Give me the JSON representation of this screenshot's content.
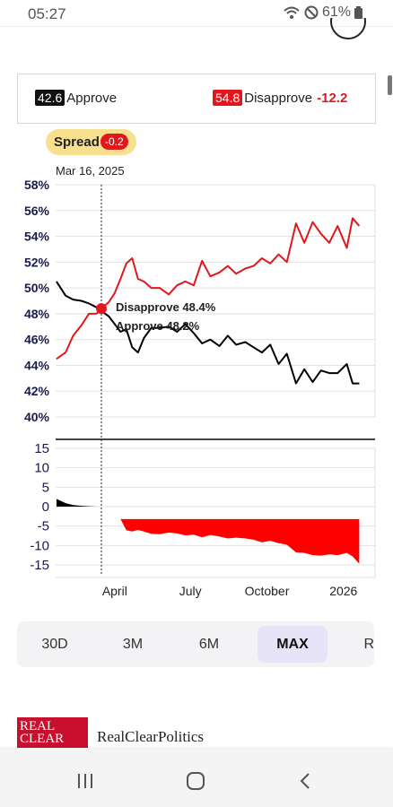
{
  "status": {
    "time": "05:27",
    "battery": "61%"
  },
  "legend": {
    "approve_value": "42.6",
    "approve_label": "Approve",
    "disapprove_value": "54.8",
    "disapprove_label": "Disapprove",
    "net": "-12.2"
  },
  "spread": {
    "label": "Spread",
    "value": "-0.2"
  },
  "tooltip": {
    "date": "Mar 16, 2025",
    "disapprove": "Disapprove 48.4%",
    "approve": "Approve 48.2%"
  },
  "range": {
    "options": [
      "30D",
      "3M",
      "6M",
      "MAX",
      "R"
    ],
    "selected": "MAX"
  },
  "footer": {
    "logo_text": "REAL CLEAR",
    "brand": "RealClearPolitics"
  },
  "colors": {
    "approve": "#000000",
    "disapprove": "#e1171e",
    "spread_pill": "#f7e08f",
    "active_range": "#e6e4f6"
  },
  "icons": {
    "wifi": "wifi-icon",
    "dnd": "do-not-disturb-icon",
    "battery": "battery-icon",
    "recents": "recents-icon",
    "home": "home-icon",
    "back": "back-icon"
  },
  "chart_data": [
    {
      "type": "line",
      "ylim": [
        40,
        58
      ],
      "yticks": [
        "58%",
        "56%",
        "54%",
        "52%",
        "50%",
        "48%",
        "46%",
        "44%",
        "42%",
        "40%"
      ],
      "xticks": [
        "April",
        "July",
        "October",
        "2026"
      ],
      "grid": true,
      "x": [
        "2025-01-21",
        "2025-02-01",
        "2025-02-10",
        "2025-02-20",
        "2025-03-01",
        "2025-03-10",
        "2025-03-16",
        "2025-03-25",
        "2025-04-01",
        "2025-04-08",
        "2025-04-15",
        "2025-04-22",
        "2025-04-29",
        "2025-05-06",
        "2025-05-15",
        "2025-05-25",
        "2025-06-05",
        "2025-06-15",
        "2025-06-25",
        "2025-07-05",
        "2025-07-15",
        "2025-07-25",
        "2025-08-05",
        "2025-08-15",
        "2025-08-25",
        "2025-09-05",
        "2025-09-15",
        "2025-09-25",
        "2025-10-05",
        "2025-10-15",
        "2025-10-25",
        "2025-11-05",
        "2025-11-15",
        "2025-11-25",
        "2025-12-05",
        "2025-12-15",
        "2025-12-25",
        "2026-01-05",
        "2026-01-12",
        "2026-01-20"
      ],
      "series": [
        {
          "name": "Approve",
          "values": [
            50.5,
            49.4,
            49.1,
            49.0,
            48.8,
            48.5,
            48.2,
            47.8,
            47.2,
            46.6,
            46.8,
            45.4,
            45.0,
            46.1,
            46.9,
            46.9,
            47.0,
            46.6,
            47.2,
            46.5,
            45.7,
            46.0,
            45.5,
            46.3,
            45.6,
            45.8,
            45.4,
            45.0,
            45.6,
            44.1,
            44.9,
            42.6,
            43.7,
            42.7,
            43.6,
            43.4,
            43.4,
            44.1,
            42.6,
            42.6
          ]
        },
        {
          "name": "Disapprove",
          "values": [
            44.5,
            45.0,
            46.3,
            47.1,
            48.0,
            48.0,
            48.4,
            48.9,
            49.6,
            50.7,
            51.9,
            52.3,
            50.7,
            50.5,
            50.0,
            50.0,
            49.5,
            50.2,
            50.5,
            50.2,
            52.1,
            50.9,
            51.2,
            51.7,
            51.1,
            51.5,
            51.7,
            52.3,
            51.9,
            52.6,
            52.0,
            55.0,
            53.5,
            55.1,
            54.2,
            53.5,
            54.8,
            53.1,
            55.4,
            54.8
          ]
        }
      ]
    },
    {
      "type": "area",
      "ylim": [
        -15,
        15
      ],
      "yticks": [
        "15",
        "10",
        "5",
        "0",
        "-5",
        "-10",
        "-15"
      ],
      "xticks": [
        "April",
        "July",
        "October",
        "2026"
      ],
      "x": [
        "2025-01-21",
        "2025-02-01",
        "2025-02-10",
        "2025-02-20",
        "2025-03-01",
        "2025-03-10",
        "2025-03-16",
        "2025-03-25",
        "2025-04-01",
        "2025-04-08",
        "2025-04-15",
        "2025-04-22",
        "2025-04-29",
        "2025-05-06",
        "2025-05-15",
        "2025-05-25",
        "2025-06-05",
        "2025-06-15",
        "2025-06-25",
        "2025-07-05",
        "2025-07-15",
        "2025-07-25",
        "2025-08-05",
        "2025-08-15",
        "2025-08-25",
        "2025-09-05",
        "2025-09-15",
        "2025-09-25",
        "2025-10-05",
        "2025-10-15",
        "2025-10-25",
        "2025-11-05",
        "2025-11-15",
        "2025-11-25",
        "2025-12-05",
        "2025-12-15",
        "2025-12-25",
        "2026-01-05",
        "2026-01-12",
        "2026-01-20"
      ],
      "series": [
        {
          "name": "Spread",
          "values": [
            2,
            0.9,
            0.4,
            0.2,
            0.1,
            0,
            -0.2,
            -1.2,
            -2.4,
            -3.1,
            -3.6,
            -3.9,
            -3.5,
            -3.9,
            -4.5,
            -4.6,
            -4.2,
            -4.4,
            -4.9,
            -4.7,
            -5.4,
            -4.8,
            -5.2,
            -5.7,
            -5.5,
            -5.7,
            -6.0,
            -6.7,
            -6.3,
            -6.9,
            -7.3,
            -9.3,
            -9.4,
            -10.0,
            -10.1,
            -9.8,
            -10.0,
            -9.4,
            -10.3,
            -12.2
          ]
        }
      ]
    }
  ]
}
